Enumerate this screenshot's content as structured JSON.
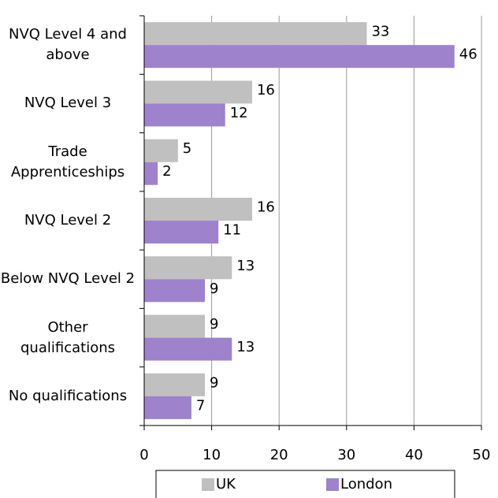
{
  "chart_data": {
    "type": "hbar",
    "categories": [
      "NVQ Level 4 and above",
      "NVQ Level 3",
      "Trade Apprenticeships",
      "NVQ Level 2",
      "Below NVQ Level 2",
      "Other qualifications",
      "No qualifications"
    ],
    "series": [
      {
        "name": "UK",
        "color": "#c0c0c0",
        "values": [
          33,
          16,
          5,
          16,
          13,
          9,
          9
        ]
      },
      {
        "name": "London",
        "color": "#9e82cc",
        "values": [
          46,
          12,
          2,
          11,
          9,
          13,
          7
        ]
      }
    ],
    "xlim": [
      0,
      50
    ],
    "xticks": [
      0,
      10,
      20,
      30,
      40,
      50
    ],
    "grid": true,
    "legend": "bottom"
  }
}
